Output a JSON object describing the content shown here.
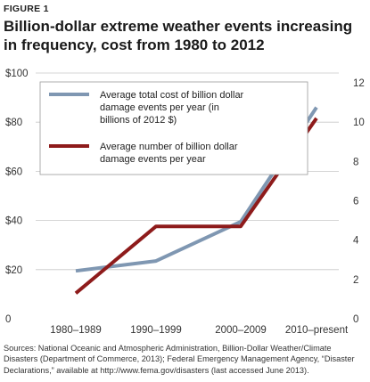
{
  "figure_label": "FIGURE 1",
  "title": "Billion-dollar extreme weather events increasing in frequency, cost from 1980 to 2012",
  "sources": "Sources: National Oceanic and Atmospheric Administration, Billion-Dollar Weather/Climate Disasters (Department of Commerce, 2013); Federal Emergency Management Agency, “Disaster Declarations,” available at http://www.fema.gov/disasters (last accessed June 2013).",
  "colors": {
    "cost": "#7f97b2",
    "count": "#8e1b1b",
    "grid": "#c8c8c8"
  },
  "chart_data": {
    "type": "line",
    "categories": [
      "1980–1989",
      "1990–1999",
      "2000–2009",
      "2010–present"
    ],
    "y_left": {
      "ticks": [
        "0",
        "$20",
        "$40",
        "$60",
        "$80",
        "$100"
      ],
      "ylim": [
        0,
        100
      ]
    },
    "y_right": {
      "ticks": [
        "0",
        "2",
        "4",
        "6",
        "8",
        "10",
        "12"
      ],
      "ylim": [
        0,
        12.5
      ]
    },
    "grid": true,
    "legend_position": "top",
    "series": [
      {
        "name": "Average total cost of billion dollar damage events per year (in billions of 2012 $)",
        "legend_lines": [
          "Average total cost of billion dollar",
          "damage events per year (in",
          "billions of 2012 $)"
        ],
        "axis": "left",
        "color": "#7f97b2",
        "values": [
          19.5,
          23.5,
          39.5,
          86
        ]
      },
      {
        "name": "Average number of billion dollar damage events per year",
        "legend_lines": [
          "Average number of billion dollar",
          "damage events per year"
        ],
        "axis": "right",
        "color": "#8e1b1b",
        "values": [
          1.3,
          4.7,
          4.7,
          10.2
        ]
      }
    ]
  }
}
